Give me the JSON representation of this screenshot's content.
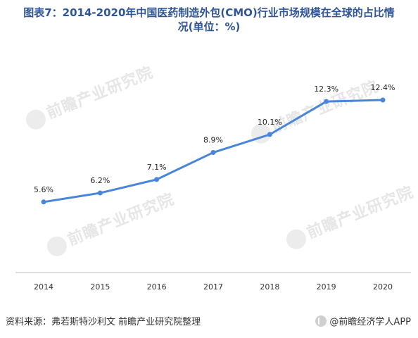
{
  "title": {
    "line1": "图表7：2014-2020年中国医药制造外包(CMO)行业市场规模在全球的占比情",
    "line2": "况(单位：%)"
  },
  "watermark_text": "前瞻产业研究院",
  "footer": {
    "source": "资料来源：弗若斯特沙利文 前瞻产业研究院整理",
    "brand": "@前瞻经济学人APP"
  },
  "colors": {
    "title": "#2f5597",
    "line": "#4a86d8",
    "axis": "#bfbfbf"
  },
  "chart_data": {
    "type": "line",
    "title": "图表7：2014-2020年中国医药制造外包(CMO)行业市场规模在全球的占比情况(单位：%)",
    "categories": [
      "2014",
      "2015",
      "2016",
      "2017",
      "2018",
      "2019",
      "2020"
    ],
    "values": [
      5.6,
      6.2,
      7.1,
      8.9,
      10.1,
      12.3,
      12.4
    ],
    "data_labels": [
      "5.6%",
      "6.2%",
      "7.1%",
      "8.9%",
      "10.1%",
      "12.3%",
      "12.4%"
    ],
    "xlabel": "",
    "ylabel": "",
    "ylim": [
      0,
      14
    ],
    "grid": false,
    "legend": "none"
  }
}
